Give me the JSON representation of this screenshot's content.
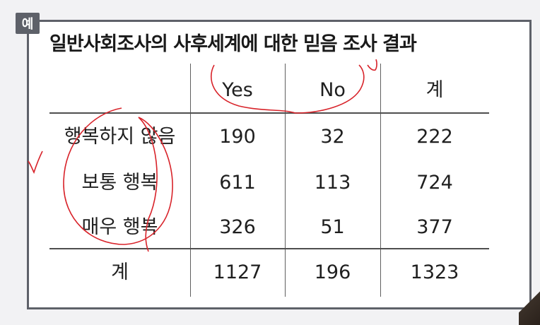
{
  "badge": "예",
  "title": "일반사회조사의 사후세계에 대한 믿음 조사 결과",
  "table": {
    "headers": [
      "Yes",
      "No",
      "계"
    ],
    "rows": [
      {
        "label": "행복하지 않음",
        "values": [
          "190",
          "32",
          "222"
        ]
      },
      {
        "label": "보통 행복",
        "values": [
          "611",
          "113",
          "724"
        ]
      },
      {
        "label": "매우 행복",
        "values": [
          "326",
          "51",
          "377"
        ]
      }
    ],
    "total": {
      "label": "계",
      "values": [
        "1127",
        "196",
        "1323"
      ]
    }
  },
  "annotation_color": "#d8232a"
}
